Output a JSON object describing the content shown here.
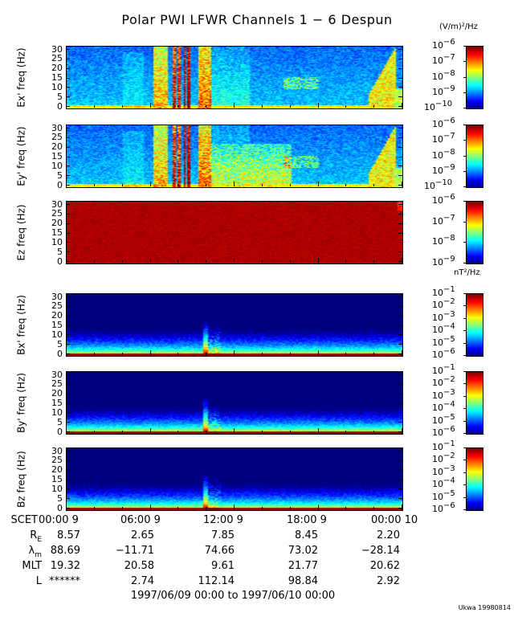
{
  "chart_data": {
    "type": "heatmap",
    "title": "Polar PWI LFWR Channels 1 − 6 Despun",
    "panels": [
      {
        "ylabel": "Ex' freq (Hz)",
        "kind": "E1",
        "yticks": [
          0,
          5,
          10,
          15,
          20,
          25,
          30
        ],
        "ylim": [
          0,
          30
        ],
        "cbar_exponents": [
          -6,
          -7,
          -8,
          -9,
          -10
        ],
        "cbar_range": [
          -10,
          -6
        ]
      },
      {
        "ylabel": "Ey' freq (Hz)",
        "kind": "E2",
        "yticks": [
          0,
          5,
          10,
          15,
          20,
          25,
          30
        ],
        "ylim": [
          0,
          30
        ],
        "cbar_exponents": [
          -6,
          -7,
          -8,
          -9,
          -10
        ],
        "cbar_range": [
          -10,
          -6
        ]
      },
      {
        "ylabel": "Ez freq (Hz)",
        "kind": "EZ",
        "yticks": [
          0,
          5,
          10,
          15,
          20,
          25,
          30
        ],
        "ylim": [
          0,
          30
        ],
        "cbar_exponents": [
          -6,
          -7,
          -8,
          -9
        ],
        "cbar_range": [
          -9,
          -6
        ]
      },
      {
        "ylabel": "Bx' freq (Hz)",
        "kind": "B",
        "yticks": [
          0,
          5,
          10,
          15,
          20,
          25,
          30
        ],
        "ylim": [
          0,
          30
        ],
        "cbar_exponents": [
          -1,
          -2,
          -3,
          -4,
          -5,
          -6
        ],
        "cbar_range": [
          -6,
          -1
        ]
      },
      {
        "ylabel": "By' freq (Hz)",
        "kind": "B",
        "yticks": [
          0,
          5,
          10,
          15,
          20,
          25,
          30
        ],
        "ylim": [
          0,
          30
        ],
        "cbar_exponents": [
          -1,
          -2,
          -3,
          -4,
          -5,
          -6
        ],
        "cbar_range": [
          -6,
          -1
        ]
      },
      {
        "ylabel": "Bz freq (Hz)",
        "kind": "B",
        "yticks": [
          0,
          5,
          10,
          15,
          20,
          25,
          30
        ],
        "ylim": [
          0,
          30
        ],
        "cbar_exponents": [
          -1,
          -2,
          -3,
          -4,
          -5,
          -6
        ],
        "cbar_range": [
          -6,
          -1
        ]
      }
    ],
    "e_units": "(V/m)²/Hz",
    "b_units": "nT²/Hz",
    "xlim_hours": [
      0,
      24
    ],
    "ephemeris": {
      "rows": [
        {
          "label": "SCET",
          "values": [
            "00:00  9",
            "06:00  9",
            "12:00  9",
            "18:00  9",
            "00:00 10"
          ]
        },
        {
          "label": "R",
          "sub": "E",
          "values": [
            "8.57",
            "2.65",
            "7.85",
            "8.45",
            "2.20"
          ]
        },
        {
          "label": "λ",
          "sub": "m",
          "values": [
            "88.69",
            "−11.71",
            "74.66",
            "73.02",
            "−28.14"
          ]
        },
        {
          "label": "MLT",
          "values": [
            "19.32",
            "20.58",
            "9.61",
            "21.77",
            "20.62"
          ]
        },
        {
          "label": "L",
          "values": [
            "******",
            "2.74",
            "112.14",
            "98.84",
            "2.92"
          ]
        }
      ]
    },
    "date_range": "1997/06/09 00:00 to 1997/06/10 00:00"
  },
  "footer": "Ukwa 19980814"
}
